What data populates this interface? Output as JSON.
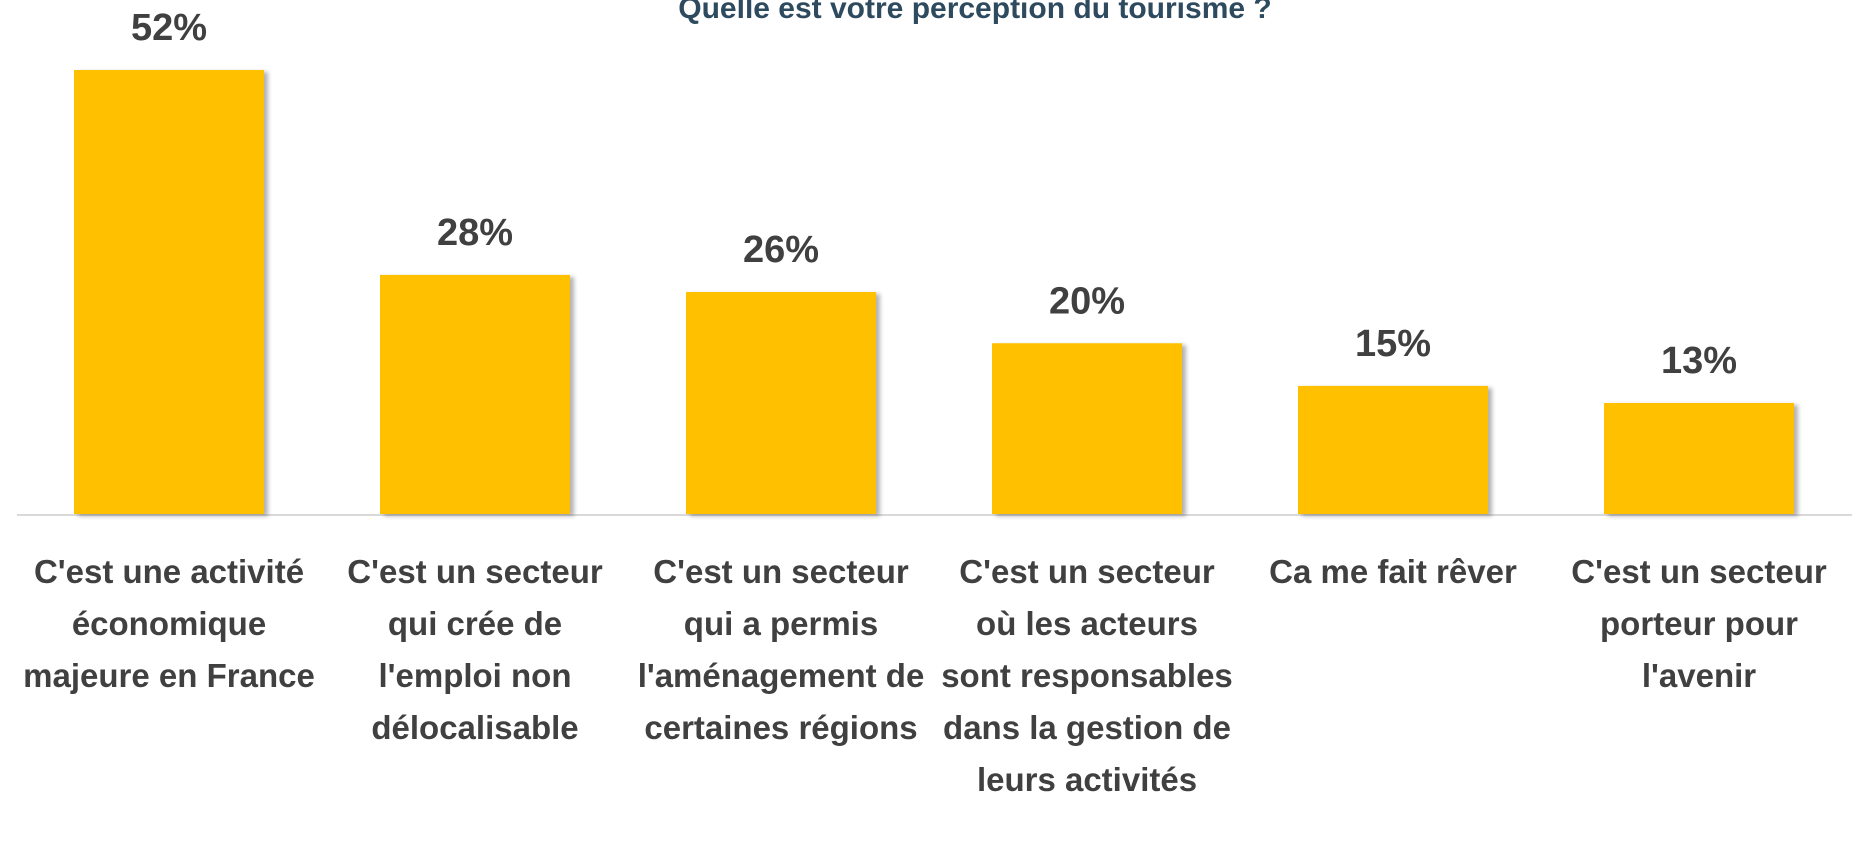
{
  "chart_data": {
    "type": "bar",
    "title": "Quelle est votre perception du tourisme ?",
    "categories": [
      "C'est une activité économique majeure en France",
      "C'est un secteur qui crée de l'emploi non délocalisable",
      "C'est un secteur qui a permis l'aménagement de certaines régions",
      "C'est un secteur où les acteurs sont responsables dans la gestion de leurs activités",
      "Ca me fait rêver",
      "C'est un secteur porteur pour l'avenir"
    ],
    "values": [
      52,
      28,
      26,
      20,
      15,
      13
    ],
    "value_labels": [
      "52%",
      "28%",
      "26%",
      "20%",
      "15%",
      "13%"
    ],
    "color": "#ffc000"
  }
}
